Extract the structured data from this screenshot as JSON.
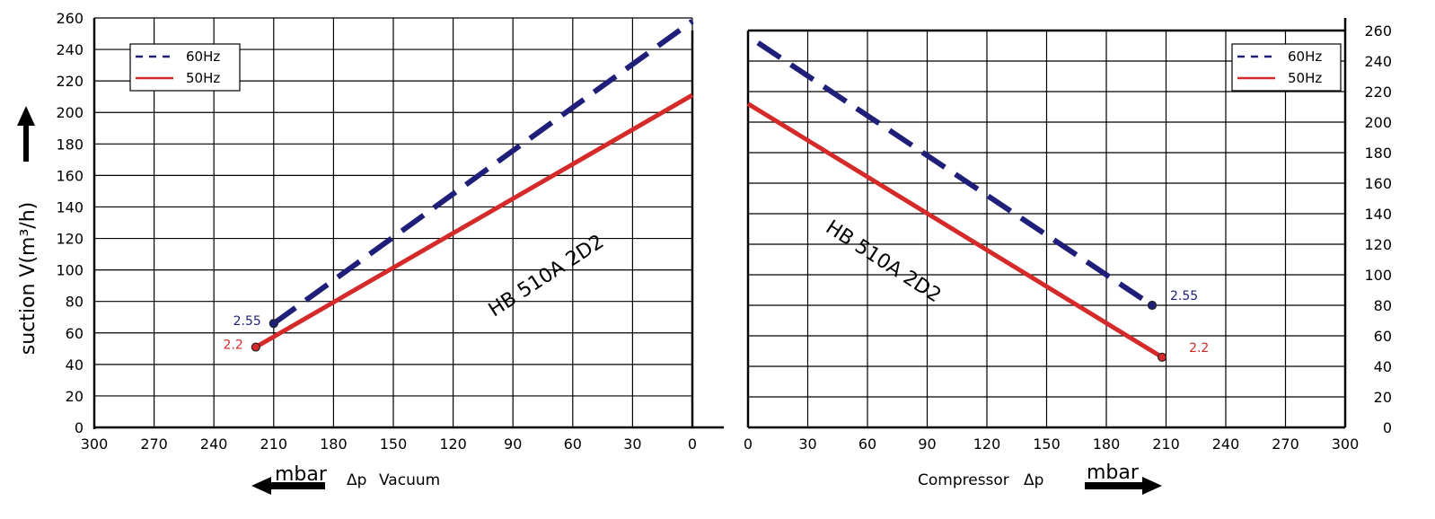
{
  "chart_data": [
    {
      "type": "line",
      "panel": "vacuum",
      "x_label_unit": "mbar",
      "x_label_symbol": "Δp",
      "x_label_text": "Vacuum",
      "y_label": "suction V(m³/h)",
      "xlim": [
        300,
        0
      ],
      "ylim": [
        0,
        260
      ],
      "x_ticks": [
        300,
        270,
        240,
        210,
        180,
        150,
        120,
        90,
        60,
        30,
        0
      ],
      "y_ticks": [
        0,
        20,
        40,
        60,
        80,
        100,
        120,
        140,
        160,
        180,
        200,
        220,
        240,
        260
      ],
      "grid": true,
      "legend_position": "top-left",
      "model_label": "HB 510A 2D2",
      "series": [
        {
          "name": "60Hz",
          "style": "dashed",
          "color": "#1f1f7a",
          "x": [
            210,
            0
          ],
          "y": [
            66,
            258
          ],
          "end_label": "2.55",
          "end_label_color": "#1f1f7a"
        },
        {
          "name": "50Hz",
          "style": "solid",
          "color": "#d42a2a",
          "x": [
            219,
            0
          ],
          "y": [
            51,
            211
          ],
          "end_label": "2.2",
          "end_label_color": "#d42a2a"
        }
      ]
    },
    {
      "type": "line",
      "panel": "compressor",
      "x_label_unit": "mbar",
      "x_label_symbol": "Δp",
      "x_label_text": "Compressor",
      "xlim": [
        0,
        300
      ],
      "ylim": [
        0,
        260
      ],
      "x_ticks": [
        0,
        30,
        60,
        90,
        120,
        150,
        180,
        210,
        240,
        270,
        300
      ],
      "y_ticks": [
        0,
        20,
        40,
        60,
        80,
        100,
        120,
        140,
        160,
        180,
        200,
        220,
        240,
        260
      ],
      "grid": true,
      "legend_position": "top-right",
      "model_label": "HB 510A 2D2",
      "series": [
        {
          "name": "60Hz",
          "style": "dashed",
          "color": "#1f1f7a",
          "x": [
            5,
            203
          ],
          "y": [
            252,
            80
          ],
          "end_label": "2.55",
          "end_label_color": "#1f1f7a"
        },
        {
          "name": "50Hz",
          "style": "solid",
          "color": "#d42a2a",
          "x": [
            0,
            208
          ],
          "y": [
            212,
            46
          ],
          "end_label": "2.2",
          "end_label_color": "#d42a2a"
        }
      ]
    }
  ]
}
